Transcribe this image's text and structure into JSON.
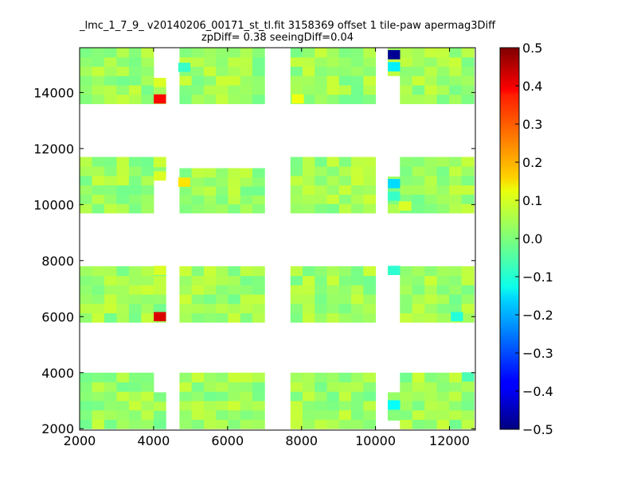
{
  "chart_data": {
    "type": "heatmap",
    "title_line1": "_lmc_1_7_9_ v20140206_00171_st_tl.fit 3158369 offset 1 tile-paw apermag3Diff",
    "title_line2": "zpDiff= 0.38 seeingDiff=0.04",
    "xlim": [
      2000,
      12700
    ],
    "ylim": [
      1950,
      15600
    ],
    "xticks": [
      2000,
      4000,
      6000,
      8000,
      10000,
      12000
    ],
    "yticks": [
      2000,
      4000,
      6000,
      8000,
      10000,
      12000,
      14000
    ],
    "colorbar": {
      "range": [
        -0.5,
        0.5
      ],
      "ticks": [
        "0.5",
        "0.4",
        "0.3",
        "0.2",
        "0.1",
        "0.0",
        "−0.1",
        "−0.2",
        "−0.3",
        "−0.4",
        "−0.5"
      ],
      "colormap": "jet"
    },
    "grid": false,
    "cell_size": [
      330,
      330
    ],
    "base_value": 0.03,
    "detector_blocks": [
      {
        "row": 1,
        "col": 1,
        "x": [
          2000,
          4000
        ],
        "y": [
          2000,
          4000
        ]
      },
      {
        "row": 1,
        "col": 2,
        "x": [
          4000,
          4330
        ],
        "y": [
          2000,
          3300
        ]
      },
      {
        "row": 1,
        "col": 3,
        "x": [
          4700,
          7000
        ],
        "y": [
          2000,
          4000
        ]
      },
      {
        "row": 1,
        "col": 4,
        "x": [
          7700,
          10000
        ],
        "y": [
          2000,
          4000
        ]
      },
      {
        "row": 1,
        "col": 5,
        "x": [
          10330,
          10660
        ],
        "y": [
          2300,
          3300
        ]
      },
      {
        "row": 1,
        "col": 6,
        "x": [
          10660,
          12660
        ],
        "y": [
          2000,
          4000
        ]
      },
      {
        "row": 2,
        "col": 1,
        "x": [
          2000,
          4000
        ],
        "y": [
          5800,
          7800
        ]
      },
      {
        "row": 2,
        "col": 2,
        "x": [
          4000,
          4330
        ],
        "y": [
          5800,
          7800
        ]
      },
      {
        "row": 2,
        "col": 3,
        "x": [
          4700,
          7000
        ],
        "y": [
          5800,
          7800
        ]
      },
      {
        "row": 2,
        "col": 4,
        "x": [
          7700,
          10000
        ],
        "y": [
          5800,
          7800
        ]
      },
      {
        "row": 2,
        "col": 5,
        "x": [
          10330,
          10660
        ],
        "y": [
          7500,
          7800
        ]
      },
      {
        "row": 2,
        "col": 6,
        "x": [
          10660,
          12660
        ],
        "y": [
          5800,
          7800
        ]
      },
      {
        "row": 3,
        "col": 1,
        "x": [
          2000,
          4000
        ],
        "y": [
          9700,
          11700
        ]
      },
      {
        "row": 3,
        "col": 2,
        "x": [
          4000,
          4330
        ],
        "y": [
          11000,
          11700
        ]
      },
      {
        "row": 3,
        "col": 3,
        "x": [
          4700,
          7000
        ],
        "y": [
          9700,
          11300
        ]
      },
      {
        "row": 3,
        "col": 4,
        "x": [
          7700,
          10000
        ],
        "y": [
          9700,
          11700
        ]
      },
      {
        "row": 3,
        "col": 5,
        "x": [
          10330,
          10660
        ],
        "y": [
          9700,
          11000
        ]
      },
      {
        "row": 3,
        "col": 6,
        "x": [
          10660,
          12660
        ],
        "y": [
          9700,
          11700
        ]
      },
      {
        "row": 4,
        "col": 1,
        "x": [
          2000,
          4000
        ],
        "y": [
          13600,
          15600
        ]
      },
      {
        "row": 4,
        "col": 2,
        "x": [
          4000,
          4330
        ],
        "y": [
          13600,
          14400
        ]
      },
      {
        "row": 4,
        "col": 3,
        "x": [
          4700,
          7000
        ],
        "y": [
          13600,
          15600
        ]
      },
      {
        "row": 4,
        "col": 4,
        "x": [
          7700,
          10000
        ],
        "y": [
          13600,
          15600
        ]
      },
      {
        "row": 4,
        "col": 5,
        "x": [
          10330,
          10660
        ],
        "y": [
          14600,
          15600
        ]
      },
      {
        "row": 4,
        "col": 6,
        "x": [
          10660,
          12660
        ],
        "y": [
          13600,
          15600
        ]
      }
    ],
    "outlier_cells": [
      {
        "x": 4170,
        "y": 13770,
        "value": 0.37
      },
      {
        "x": 4170,
        "y": 6000,
        "value": 0.41
      },
      {
        "x": 10500,
        "y": 15350,
        "value": -0.48
      },
      {
        "x": 10500,
        "y": 14920,
        "value": -0.14
      },
      {
        "x": 10500,
        "y": 10750,
        "value": -0.16
      },
      {
        "x": 10500,
        "y": 10300,
        "value": -0.07
      },
      {
        "x": 10500,
        "y": 7650,
        "value": -0.08
      },
      {
        "x": 10500,
        "y": 2850,
        "value": -0.12
      },
      {
        "x": 4830,
        "y": 10800,
        "value": 0.15
      },
      {
        "x": 4830,
        "y": 14900,
        "value": -0.07
      },
      {
        "x": 4170,
        "y": 7650,
        "value": 0.09
      },
      {
        "x": 4170,
        "y": 11020,
        "value": 0.09
      },
      {
        "x": 4170,
        "y": 14360,
        "value": 0.09
      },
      {
        "x": 7900,
        "y": 13770,
        "value": 0.11
      },
      {
        "x": 12500,
        "y": 3850,
        "value": -0.05
      },
      {
        "x": 12200,
        "y": 6000,
        "value": -0.09
      },
      {
        "x": 10800,
        "y": 9950,
        "value": 0.09
      }
    ]
  }
}
